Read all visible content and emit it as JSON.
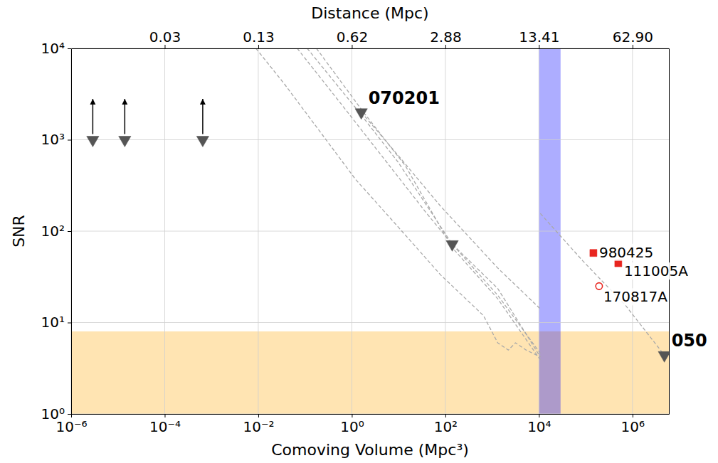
{
  "chart_data": {
    "type": "scatter",
    "log": true,
    "grid": true,
    "x2_label": "Distance (Mpc)",
    "x_label": "Comoving Volume (Mpc³)",
    "y_label": "SNR",
    "xlim": [
      1e-06,
      6000000.0
    ],
    "ylim": [
      1,
      10000
    ],
    "x2lim": [
      1e-06,
      6000000.0
    ],
    "xticks": [
      {
        "value": 1e-06,
        "label": "10⁻⁶"
      },
      {
        "value": 0.0001,
        "label": "10⁻⁴"
      },
      {
        "value": 0.01,
        "label": "10⁻²"
      },
      {
        "value": 1,
        "label": "10⁰"
      },
      {
        "value": 100,
        "label": "10²"
      },
      {
        "value": 10000,
        "label": "10⁴"
      },
      {
        "value": 1000000,
        "label": "10⁶"
      }
    ],
    "x2ticks": [
      {
        "value": 0.0001,
        "label": "0.03"
      },
      {
        "value": 0.01,
        "label": "0.13"
      },
      {
        "value": 1,
        "label": "0.62"
      },
      {
        "value": 100,
        "label": "2.88"
      },
      {
        "value": 10000,
        "label": "13.41"
      },
      {
        "value": 1000000,
        "label": "62.90"
      }
    ],
    "yticks": [
      {
        "value": 1,
        "label": "10⁰"
      },
      {
        "value": 10,
        "label": "10¹"
      },
      {
        "value": 100,
        "label": "10²"
      },
      {
        "value": 1000,
        "label": "10³"
      },
      {
        "value": 10000,
        "label": "10⁴"
      }
    ],
    "series": [
      {
        "type": "hspan",
        "color": "#ffa500",
        "values": [
          1,
          8
        ]
      },
      {
        "type": "vspan",
        "color": "#0000ff",
        "x": [
          10000,
          29000
        ]
      },
      {
        "type": "line",
        "line_style": "dashed",
        "color": "#a9a9a9",
        "x": [
          0.0089,
          0.036,
          0.208,
          1.2,
          9.8,
          80,
          653,
          1315,
          2220,
          3150,
          5320,
          10700
        ],
        "values": [
          10000,
          4090,
          1230,
          369,
          111,
          33,
          11.9,
          6.0,
          5.0,
          6.0,
          5.0,
          4.2
        ]
      },
      {
        "type": "line",
        "line_style": "dashed",
        "color": "#a9a9a9",
        "x": [
          0.068,
          0.6,
          4.9,
          40,
          140,
          1315,
          10700
        ],
        "values": [
          10000,
          2440,
          618,
          156,
          72,
          23.6,
          4.2
        ]
      },
      {
        "type": "line",
        "line_style": "dashed",
        "color": "#a9a9a9",
        "x": [
          0.111,
          1.2,
          9.8,
          140,
          1315,
          10700
        ],
        "values": [
          10000,
          2240,
          567,
          72,
          19.9,
          4.6
        ]
      },
      {
        "type": "line",
        "line_style": "dashed",
        "color": "#a9a9a9",
        "x": [
          0.175,
          1.7,
          13.9,
          140,
          1315,
          10700
        ],
        "values": [
          10000,
          2060,
          520,
          66,
          18.2,
          3.9
        ]
      },
      {
        "type": "line",
        "line_style": "dashed",
        "color": "#a9a9a9",
        "x": [
          1.59,
          9.8,
          80,
          1315,
          10700
        ],
        "values": [
          2000,
          673,
          186,
          39.5,
          14.1
        ]
      },
      {
        "type": "line",
        "line_style": "dashed",
        "color": "#a9a9a9",
        "x": [
          10700,
          87500,
          710000,
          4800000
        ],
        "values": [
          156,
          47,
          15.4,
          4.4
        ]
      },
      {
        "type": "scatter",
        "marker": "triangle-down",
        "color": "#555555",
        "x": [
          1.59,
          140,
          4800000
        ],
        "values": [
          2000,
          72,
          4.4
        ],
        "labels": [
          "070201",
          null,
          "050"
        ]
      },
      {
        "type": "scatter",
        "marker": "triangle-down",
        "color": "#555555",
        "x": [
          2.9e-06,
          1.4e-05,
          0.00065
        ],
        "values": [
          1000,
          1000,
          1000
        ],
        "arrow_to": [
          2800,
          2800,
          2800
        ]
      },
      {
        "type": "scatter",
        "marker": "square",
        "color": "#e8251f",
        "x": [
          146000,
          497000
        ],
        "values": [
          57.7,
          44.6
        ],
        "labels": [
          "980425",
          "111005A"
        ]
      },
      {
        "type": "scatter",
        "marker": "circle-open",
        "color": "#e8251f",
        "x": [
          193000
        ],
        "values": [
          25
        ],
        "labels": [
          "170817A"
        ]
      }
    ]
  }
}
